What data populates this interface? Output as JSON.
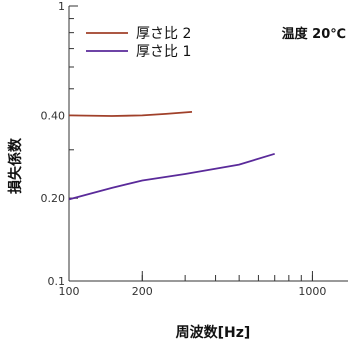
{
  "chart_data": {
    "type": "line",
    "title": "",
    "xlabel": "周波数[Hz]",
    "ylabel": "損失係数",
    "x_scale": "log",
    "y_scale": "log",
    "xlim": [
      100,
      1400
    ],
    "ylim": [
      0.1,
      1
    ],
    "x_ticks": [
      {
        "value": 100,
        "label": "100"
      },
      {
        "value": 200,
        "label": "200"
      },
      {
        "value": 1000,
        "label": "1000"
      }
    ],
    "y_ticks": [
      {
        "value": 0.1,
        "label": "0.1"
      },
      {
        "value": 0.2,
        "label": "0.20"
      },
      {
        "value": 0.4,
        "label": "0.40"
      },
      {
        "value": 1,
        "label": "1"
      }
    ],
    "annotation": "温度 20℃",
    "legend_position": "top-left",
    "grid": false,
    "series": [
      {
        "name": "厚さ比 2",
        "color": "#a0402a",
        "points": [
          [
            100,
            0.4
          ],
          [
            150,
            0.398
          ],
          [
            200,
            0.4
          ],
          [
            250,
            0.405
          ],
          [
            320,
            0.412
          ]
        ]
      },
      {
        "name": "厚さ比 1",
        "color": "#5a2a9a",
        "points": [
          [
            100,
            0.198
          ],
          [
            150,
            0.218
          ],
          [
            200,
            0.232
          ],
          [
            300,
            0.245
          ],
          [
            500,
            0.265
          ],
          [
            700,
            0.29
          ]
        ]
      }
    ]
  }
}
